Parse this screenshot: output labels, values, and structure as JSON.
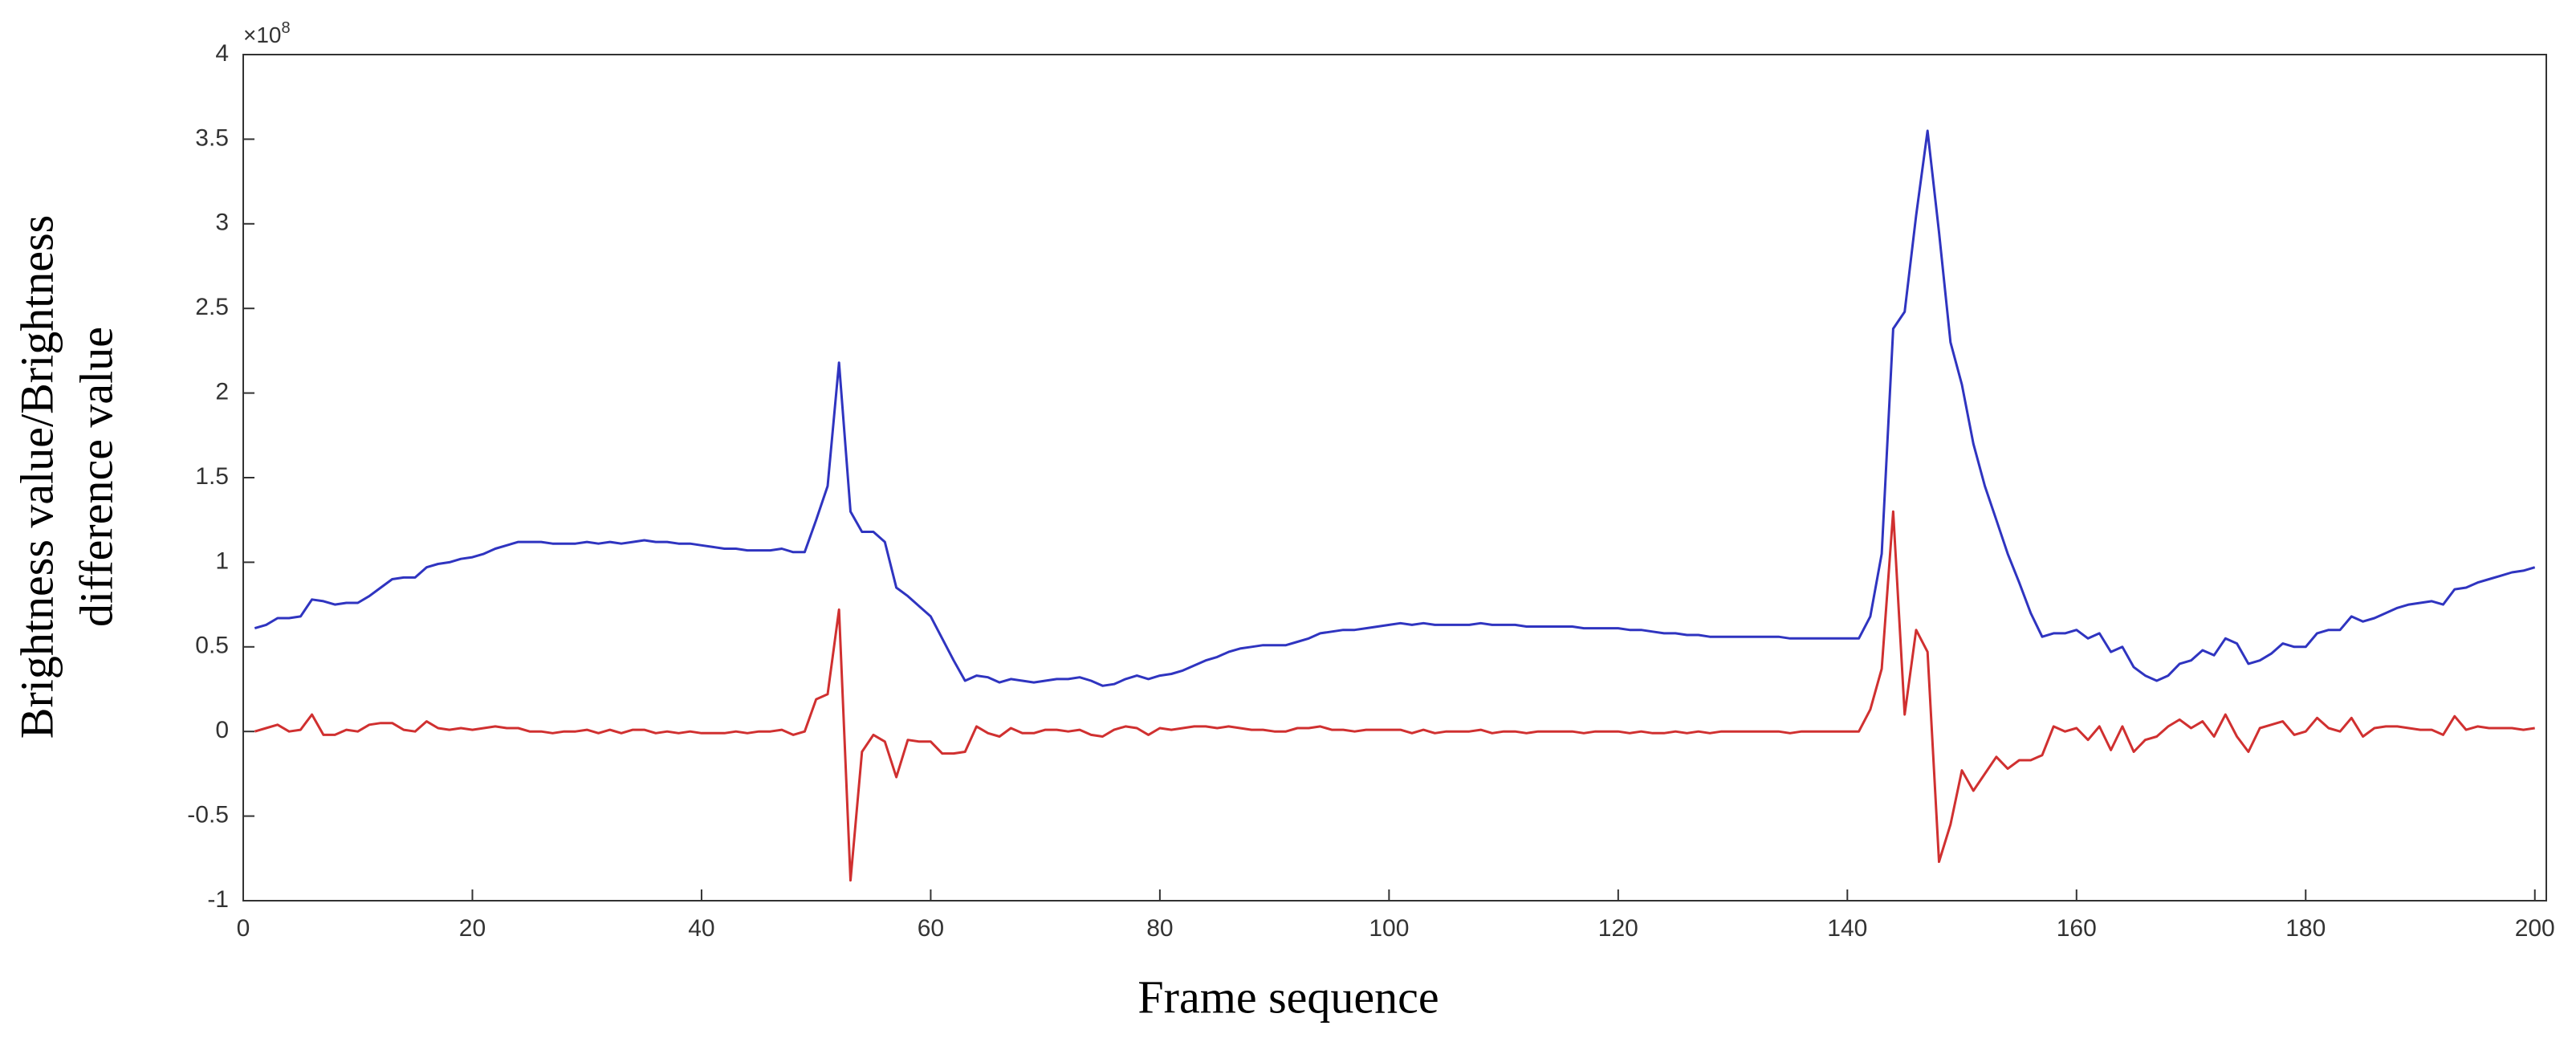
{
  "chart_data": {
    "type": "line",
    "xlabel": "Frame sequence",
    "ylabel": [
      "Brightness value/Brightness",
      "difference value"
    ],
    "y_multiplier_base": "×10",
    "y_multiplier_exponent": "8",
    "x": [
      1,
      2,
      3,
      4,
      5,
      6,
      7,
      8,
      9,
      10,
      11,
      12,
      13,
      14,
      15,
      16,
      17,
      18,
      19,
      20,
      21,
      22,
      23,
      24,
      25,
      26,
      27,
      28,
      29,
      30,
      31,
      32,
      33,
      34,
      35,
      36,
      37,
      38,
      39,
      40,
      41,
      42,
      43,
      44,
      45,
      46,
      47,
      48,
      49,
      50,
      51,
      52,
      53,
      54,
      55,
      56,
      57,
      58,
      59,
      60,
      61,
      62,
      63,
      64,
      65,
      66,
      67,
      68,
      69,
      70,
      71,
      72,
      73,
      74,
      75,
      76,
      77,
      78,
      79,
      80,
      81,
      82,
      83,
      84,
      85,
      86,
      87,
      88,
      89,
      90,
      91,
      92,
      93,
      94,
      95,
      96,
      97,
      98,
      99,
      100,
      101,
      102,
      103,
      104,
      105,
      106,
      107,
      108,
      109,
      110,
      111,
      112,
      113,
      114,
      115,
      116,
      117,
      118,
      119,
      120,
      121,
      122,
      123,
      124,
      125,
      126,
      127,
      128,
      129,
      130,
      131,
      132,
      133,
      134,
      135,
      136,
      137,
      138,
      139,
      140,
      141,
      142,
      143,
      144,
      145,
      146,
      147,
      148,
      149,
      150,
      151,
      152,
      153,
      154,
      155,
      156,
      157,
      158,
      159,
      160,
      161,
      162,
      163,
      164,
      165,
      166,
      167,
      168,
      169,
      170,
      171,
      172,
      173,
      174,
      175,
      176,
      177,
      178,
      179,
      180,
      181,
      182,
      183,
      184,
      185,
      186,
      187,
      188,
      189,
      190,
      191,
      192,
      193,
      194,
      195,
      196,
      197,
      198,
      199,
      200
    ],
    "series": [
      {
        "color": "#2f34c0",
        "values": [
          0.61,
          0.63,
          0.67,
          0.67,
          0.68,
          0.78,
          0.77,
          0.75,
          0.76,
          0.76,
          0.8,
          0.85,
          0.9,
          0.91,
          0.91,
          0.97,
          0.99,
          1.0,
          1.02,
          1.03,
          1.05,
          1.08,
          1.1,
          1.12,
          1.12,
          1.12,
          1.11,
          1.11,
          1.11,
          1.12,
          1.11,
          1.12,
          1.11,
          1.12,
          1.13,
          1.12,
          1.12,
          1.11,
          1.11,
          1.1,
          1.09,
          1.08,
          1.08,
          1.07,
          1.07,
          1.07,
          1.08,
          1.06,
          1.06,
          1.25,
          1.45,
          2.18,
          1.3,
          1.18,
          1.18,
          1.12,
          0.85,
          0.8,
          0.74,
          0.68,
          0.55,
          0.42,
          0.3,
          0.33,
          0.32,
          0.29,
          0.31,
          0.3,
          0.29,
          0.3,
          0.31,
          0.31,
          0.32,
          0.3,
          0.27,
          0.28,
          0.31,
          0.33,
          0.31,
          0.33,
          0.34,
          0.36,
          0.39,
          0.42,
          0.44,
          0.47,
          0.49,
          0.5,
          0.51,
          0.51,
          0.51,
          0.53,
          0.55,
          0.58,
          0.59,
          0.6,
          0.6,
          0.61,
          0.62,
          0.63,
          0.64,
          0.63,
          0.64,
          0.63,
          0.63,
          0.63,
          0.63,
          0.64,
          0.63,
          0.63,
          0.63,
          0.62,
          0.62,
          0.62,
          0.62,
          0.62,
          0.61,
          0.61,
          0.61,
          0.61,
          0.6,
          0.6,
          0.59,
          0.58,
          0.58,
          0.57,
          0.57,
          0.56,
          0.56,
          0.56,
          0.56,
          0.56,
          0.56,
          0.56,
          0.55,
          0.55,
          0.55,
          0.55,
          0.55,
          0.55,
          0.55,
          0.68,
          1.05,
          2.38,
          2.48,
          3.05,
          3.55,
          2.95,
          2.3,
          2.05,
          1.7,
          1.45,
          1.25,
          1.05,
          0.88,
          0.7,
          0.56,
          0.58,
          0.58,
          0.6,
          0.55,
          0.58,
          0.47,
          0.5,
          0.38,
          0.33,
          0.3,
          0.33,
          0.4,
          0.42,
          0.48,
          0.45,
          0.55,
          0.52,
          0.4,
          0.42,
          0.46,
          0.52,
          0.5,
          0.5,
          0.58,
          0.6,
          0.6,
          0.68,
          0.65,
          0.67,
          0.7,
          0.73,
          0.75,
          0.76,
          0.77,
          0.75,
          0.84,
          0.85,
          0.88,
          0.9,
          0.92,
          0.94,
          0.95,
          0.97
        ]
      },
      {
        "color": "#d03030",
        "values": [
          0,
          0.02,
          0.04,
          0,
          0.01,
          0.1,
          -0.02,
          -0.02,
          0.01,
          0,
          0.04,
          0.05,
          0.05,
          0.01,
          0,
          0.06,
          0.02,
          0.01,
          0.02,
          0.01,
          0.02,
          0.03,
          0.02,
          0.02,
          0,
          0,
          -0.01,
          0,
          0,
          0.01,
          -0.01,
          0.01,
          -0.01,
          0.01,
          0.01,
          -0.01,
          0,
          -0.01,
          0,
          -0.01,
          -0.01,
          -0.01,
          0,
          -0.01,
          0,
          0,
          0.01,
          -0.02,
          0,
          0.19,
          0.22,
          0.72,
          -0.88,
          -0.12,
          -0.02,
          -0.06,
          -0.27,
          -0.05,
          -0.06,
          -0.06,
          -0.13,
          -0.13,
          -0.12,
          0.03,
          -0.01,
          -0.03,
          0.02,
          -0.01,
          -0.01,
          0.01,
          0.01,
          0,
          0.01,
          -0.02,
          -0.03,
          0.01,
          0.03,
          0.02,
          -0.02,
          0.02,
          0.01,
          0.02,
          0.03,
          0.03,
          0.02,
          0.03,
          0.02,
          0.01,
          0.01,
          0,
          0,
          0.02,
          0.02,
          0.03,
          0.01,
          0.01,
          0,
          0.01,
          0.01,
          0.01,
          0.01,
          -0.01,
          0.01,
          -0.01,
          0,
          0,
          0,
          0.01,
          -0.01,
          0,
          0,
          -0.01,
          0,
          0,
          0,
          0,
          -0.01,
          0,
          0,
          0,
          -0.01,
          0,
          -0.01,
          -0.01,
          0,
          -0.01,
          0,
          -0.01,
          0,
          0,
          0,
          0,
          0,
          0,
          -0.01,
          0,
          0,
          0,
          0,
          0,
          0,
          0.13,
          0.37,
          1.3,
          0.1,
          0.6,
          0.47,
          -0.77,
          -0.55,
          -0.23,
          -0.35,
          -0.25,
          -0.15,
          -0.22,
          -0.17,
          -0.17,
          -0.14,
          0.03,
          0,
          0.02,
          -0.05,
          0.03,
          -0.11,
          0.03,
          -0.12,
          -0.05,
          -0.03,
          0.03,
          0.07,
          0.02,
          0.06,
          -0.03,
          0.1,
          -0.03,
          -0.12,
          0.02,
          0.04,
          0.06,
          -0.02,
          0,
          0.08,
          0.02,
          0,
          0.08,
          -0.03,
          0.02,
          0.03,
          0.03,
          0.02,
          0.01,
          0.01,
          -0.02,
          0.09,
          0.01,
          0.03,
          0.02,
          0.02,
          0.02,
          0.01,
          0.02
        ]
      }
    ],
    "xlim": [
      0,
      201
    ],
    "xticks": [
      0,
      20,
      40,
      60,
      80,
      100,
      120,
      140,
      160,
      180,
      200
    ],
    "ylim": [
      -1,
      4
    ],
    "yticks": [
      -1,
      -0.5,
      0,
      0.5,
      1,
      1.5,
      2,
      2.5,
      3,
      3.5,
      4
    ]
  }
}
